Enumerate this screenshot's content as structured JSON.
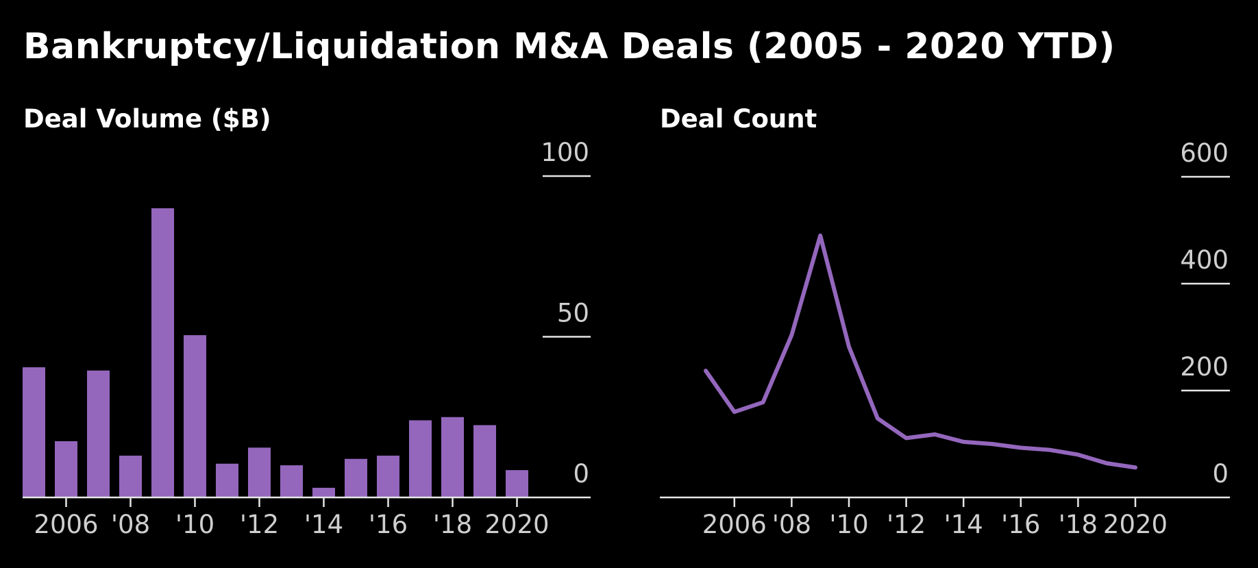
{
  "title": "Bankruptcy/Liquidation M&A Deals (2005 - 2020 YTD)",
  "colors": {
    "background": "#000000",
    "series": "#9467bd",
    "text": "#ffffff",
    "axis": "#e6e6e6",
    "tick_text": "#cfcfcf"
  },
  "chart_data": [
    {
      "type": "bar",
      "title": "Deal Volume ($B)",
      "categories": [
        "2005",
        "2006",
        "2007",
        "2008",
        "2009",
        "2010",
        "2011",
        "2012",
        "2013",
        "2014",
        "2015",
        "2016",
        "2017",
        "2018",
        "2019",
        "2020"
      ],
      "x_tick_labels": [
        "2006",
        "'08",
        "'10",
        "'12",
        "'14",
        "'16",
        "'18",
        "2020"
      ],
      "x_tick_years": [
        2006,
        2008,
        2010,
        2012,
        2014,
        2016,
        2018,
        2020
      ],
      "series": [
        {
          "values": [
            40.5,
            17.5,
            39.5,
            13.0,
            90.0,
            50.5,
            10.5,
            15.5,
            10.0,
            3.0,
            12.0,
            13.0,
            24.0,
            25.0,
            22.5,
            8.5
          ]
        }
      ],
      "ylim": [
        0,
        100
      ],
      "y_ticks": [
        0,
        50,
        100
      ],
      "y_tick_labels": [
        "0",
        "50",
        "100"
      ],
      "y_axis_side": "right",
      "xlabel": "",
      "ylabel": ""
    },
    {
      "type": "line",
      "title": "Deal Count",
      "x": [
        2005,
        2006,
        2007,
        2008,
        2009,
        2010,
        2011,
        2012,
        2013,
        2014,
        2015,
        2016,
        2017,
        2018,
        2019,
        2020
      ],
      "x_tick_labels": [
        "2006",
        "'08",
        "'10",
        "'12",
        "'14",
        "'16",
        "'18",
        "2020"
      ],
      "x_tick_years": [
        2006,
        2008,
        2010,
        2012,
        2014,
        2016,
        2018,
        2020
      ],
      "series": [
        {
          "values": [
            237,
            160,
            178,
            304,
            490,
            282,
            148,
            111,
            118,
            104,
            100,
            93,
            89,
            80,
            64,
            56
          ]
        }
      ],
      "ylim": [
        0,
        600
      ],
      "y_ticks": [
        0,
        200,
        400,
        600
      ],
      "y_tick_labels": [
        "0",
        "200",
        "400",
        "600"
      ],
      "y_axis_side": "right",
      "xlabel": "",
      "ylabel": ""
    }
  ]
}
